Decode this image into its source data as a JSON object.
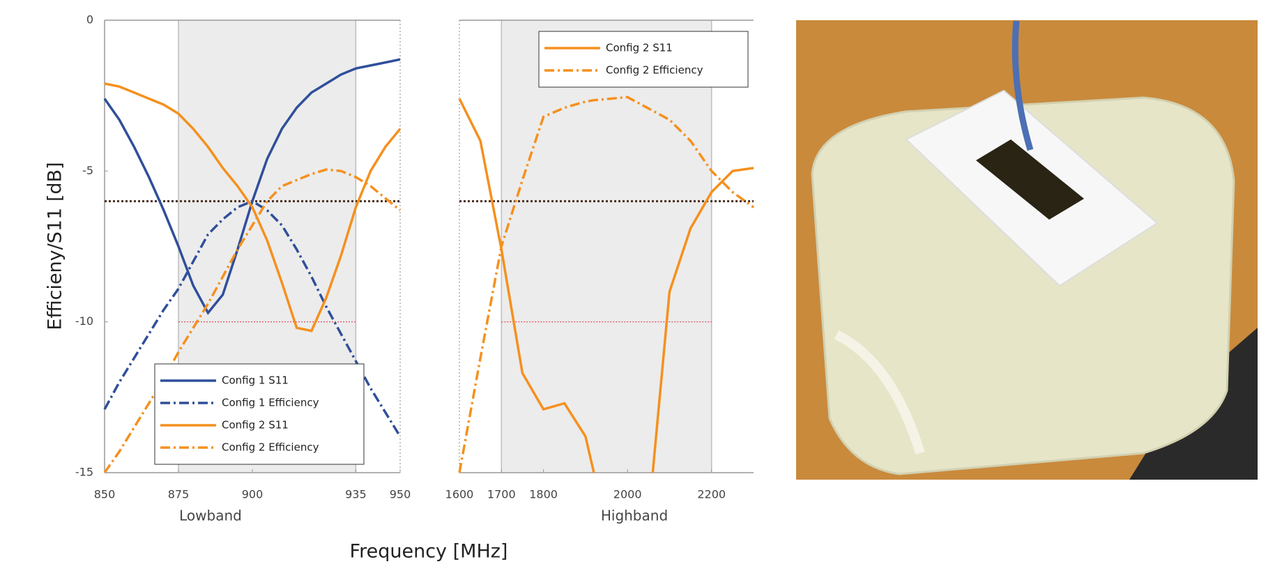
{
  "figure": {
    "xlabel": "Frequency [MHz]",
    "ylabel": "Efficieny/S11 [dB]"
  },
  "chart_data": [
    {
      "type": "line",
      "xlabel": "Lowband",
      "xlim": [
        850,
        950
      ],
      "ylim": [
        -15,
        0
      ],
      "xticks": [
        850,
        875,
        900,
        935,
        950
      ],
      "yticks": [
        0,
        -5,
        -10,
        -15
      ],
      "shaded_band": [
        875,
        935
      ],
      "threshold": -6,
      "limit": -10,
      "legend": "lower left",
      "x": [
        850,
        855,
        860,
        865,
        870,
        875,
        880,
        885,
        890,
        895,
        900,
        905,
        910,
        915,
        920,
        925,
        930,
        935,
        940,
        945,
        950
      ],
      "series": [
        {
          "name": "Config 1 S11",
          "color": "#2f4f9a",
          "style": "solid",
          "values": [
            -2.6,
            -3.3,
            -4.2,
            -5.2,
            -6.3,
            -7.5,
            -8.8,
            -9.7,
            -9.1,
            -7.6,
            -6.0,
            -4.6,
            -3.6,
            -2.9,
            -2.4,
            -2.1,
            -1.8,
            -1.6,
            -1.5,
            -1.4,
            -1.3
          ]
        },
        {
          "name": "Config 1 Efficiency",
          "color": "#2f4f9a",
          "style": "dashdot",
          "values": [
            -12.9,
            -12.0,
            -11.2,
            -10.4,
            -9.6,
            -8.9,
            -8.0,
            -7.1,
            -6.6,
            -6.2,
            -6.0,
            -6.3,
            -6.8,
            -7.6,
            -8.5,
            -9.5,
            -10.4,
            -11.3,
            -12.2,
            -13.0,
            -13.8
          ]
        },
        {
          "name": "Config 2 S11",
          "color": "#f5901e",
          "style": "solid",
          "values": [
            -2.1,
            -2.2,
            -2.4,
            -2.6,
            -2.8,
            -3.1,
            -3.6,
            -4.2,
            -4.9,
            -5.5,
            -6.2,
            -7.3,
            -8.7,
            -10.2,
            -10.3,
            -9.2,
            -7.8,
            -6.2,
            -5.0,
            -4.2,
            -3.6
          ]
        },
        {
          "name": "Config 2 Efficiency",
          "color": "#f5901e",
          "style": "dashdot",
          "values": [
            -15,
            -14.3,
            -13.5,
            -12.7,
            -11.9,
            -11.0,
            -10.2,
            -9.4,
            -8.5,
            -7.6,
            -6.8,
            -6.0,
            -5.5,
            -5.3,
            -5.1,
            -4.95,
            -5.0,
            -5.2,
            -5.5,
            -5.9,
            -6.3
          ]
        }
      ]
    },
    {
      "type": "line",
      "xlabel": "Highband",
      "xlim": [
        1600,
        2300
      ],
      "ylim": [
        -15,
        0
      ],
      "xticks": [
        1600,
        1700,
        1800,
        2000,
        2200
      ],
      "shaded_band": [
        1700,
        2200
      ],
      "threshold": -6,
      "limit": -10,
      "legend": "upper right",
      "x": [
        1600,
        1650,
        1700,
        1750,
        1800,
        1850,
        1900,
        1920,
        2000,
        2060,
        2100,
        2150,
        2200,
        2250,
        2300
      ],
      "series": [
        {
          "name": "Config 2 S11",
          "color": "#f5901e",
          "style": "solid",
          "values": [
            -2.6,
            -4.0,
            -7.6,
            -11.7,
            -12.9,
            -12.7,
            -13.8,
            -15,
            null,
            -15,
            -9.0,
            -6.9,
            -5.7,
            -5.0,
            -4.9
          ]
        },
        {
          "name": "Config 2 Efficiency",
          "color": "#f5901e",
          "style": "dashdot",
          "values": [
            -15,
            -11.2,
            -7.5,
            -5.3,
            -3.2,
            -2.9,
            -2.7,
            -2.65,
            -2.55,
            -3.0,
            -3.3,
            -4.0,
            -5.0,
            -5.7,
            -6.2
          ]
        }
      ]
    }
  ]
}
